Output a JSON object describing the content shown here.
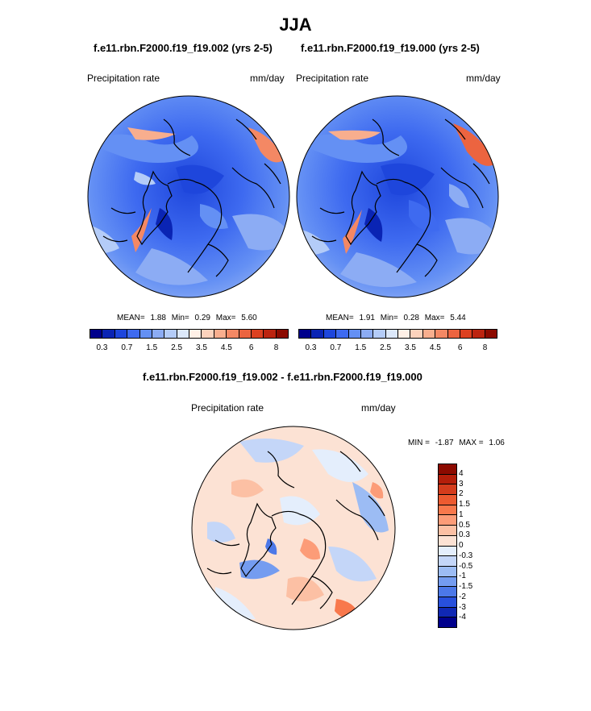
{
  "title": "JJA",
  "panels": [
    {
      "case_title": "f.e11.rbn.F2000.f19_f19.002 (yrs 2-5)",
      "variable": "Precipitation rate",
      "units": "mm/day",
      "stats": {
        "mean_label": "MEAN=",
        "mean": "1.88",
        "min_label": "Min=",
        "min": "0.29",
        "max_label": "Max=",
        "max": "5.60"
      }
    },
    {
      "case_title": "f.e11.rbn.F2000.f19_f19.000 (yrs 2-5)",
      "variable": "Precipitation rate",
      "units": "mm/day",
      "stats": {
        "mean_label": "MEAN=",
        "mean": "1.91",
        "min_label": "Min=",
        "min": "0.28",
        "max_label": "Max=",
        "max": "5.44"
      }
    }
  ],
  "abs_colorbar": {
    "colors": [
      "#00008c",
      "#0a24b4",
      "#1e46dc",
      "#3e6af0",
      "#6490f4",
      "#8cacf4",
      "#b4ccf8",
      "#dce8fa",
      "#fff0e6",
      "#fcd2bc",
      "#f8ae8e",
      "#f48864",
      "#ec6440",
      "#dc4020",
      "#bc2410",
      "#8c0a00"
    ],
    "tick_labels": [
      "0.3",
      "0.7",
      "1.5",
      "2.5",
      "3.5",
      "4.5",
      "6",
      "8"
    ]
  },
  "diff_panel": {
    "title": "f.e11.rbn.F2000.f19_f19.002 - f.e11.rbn.F2000.f19_f19.000",
    "variable": "Precipitation rate",
    "units": "mm/day",
    "stats": {
      "min_label": "MIN =",
      "min": "-1.87",
      "max_label": "MAX =",
      "max": "1.06"
    }
  },
  "diff_colorbar": {
    "colors": [
      "#8c0a00",
      "#b41e0a",
      "#d43c1c",
      "#ec5a30",
      "#f8784c",
      "#fc9c78",
      "#fcc0a4",
      "#fce2d4",
      "#e4eefc",
      "#c4d6f8",
      "#9cbcf4",
      "#749cf0",
      "#4c78e8",
      "#2850dc",
      "#1028b4",
      "#00008c"
    ],
    "tick_labels": [
      "4",
      "3",
      "2",
      "1.5",
      "1",
      "0.5",
      "0.3",
      "0",
      "-0.3",
      "-0.5",
      "-1",
      "-1.5",
      "-2",
      "-3",
      "-4"
    ]
  }
}
